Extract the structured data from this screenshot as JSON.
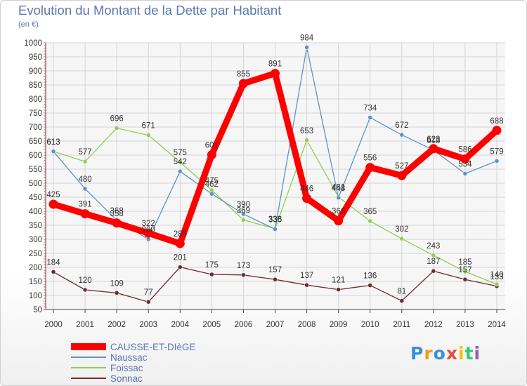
{
  "title": "Evolution du Montant de la Dette par Habitant",
  "subtitle": "(en €)",
  "brand": {
    "letters": [
      "P",
      "r",
      "o",
      "x",
      "i",
      "t",
      "i"
    ],
    "colors": [
      "#3b8ed8",
      "#f39c12",
      "#3b8ed8",
      "#e74c3c",
      "#f1c40f",
      "#2ecc71",
      "#9b59b6"
    ]
  },
  "chart_data": {
    "type": "line",
    "x": [
      "2000",
      "2001",
      "2002",
      "2003",
      "2004",
      "2005",
      "2006",
      "2007",
      "2008",
      "2009",
      "2010",
      "2011",
      "2012",
      "2013",
      "2014"
    ],
    "ylim": [
      50,
      1000
    ],
    "yticks": [
      50,
      100,
      150,
      200,
      250,
      300,
      350,
      400,
      450,
      500,
      550,
      600,
      650,
      700,
      750,
      800,
      850,
      900,
      950,
      1000
    ],
    "grid": true,
    "legend": "bottom-left",
    "series": [
      {
        "name": "CAUSSE-ET-DIèGE",
        "color": "#ff0000",
        "values": [
          425,
          391,
          358,
          322,
          285,
          601,
          855,
          891,
          446,
          366,
          556,
          527,
          623,
          586,
          688
        ],
        "labels": [
          "425",
          "391",
          "358",
          "322",
          "285",
          "601",
          "855",
          "891",
          "446",
          "366",
          "556",
          "527",
          "623",
          "586",
          "688"
        ]
      },
      {
        "name": "Naussac",
        "color": "#5b93c8",
        "values": [
          613,
          480,
          368,
          300,
          542,
          462,
          390,
          336,
          984,
          448,
          734,
          672,
          618,
          534,
          579
        ],
        "labels": [
          "613",
          "480",
          "368",
          "300",
          "542",
          "462",
          "390",
          "336",
          "984",
          "448",
          "734",
          "672",
          "618",
          "534",
          "579"
        ]
      },
      {
        "name": "Foissac",
        "color": "#8ed04f",
        "values": [
          613,
          577,
          696,
          671,
          575,
          475,
          369,
          338,
          653,
          451,
          365,
          302,
          243,
          185,
          140
        ],
        "labels": [
          "613",
          "577",
          "696",
          "671",
          "575",
          "475",
          "369",
          "338",
          "653",
          "451",
          "365",
          "302",
          "243",
          "185",
          "140"
        ]
      },
      {
        "name": "Sonnac",
        "color": "#6e2b2b",
        "values": [
          184,
          120,
          109,
          77,
          201,
          175,
          173,
          157,
          137,
          121,
          136,
          81,
          187,
          157,
          133
        ],
        "labels": [
          "184",
          "120",
          "109",
          "77",
          "201",
          "175",
          "173",
          "157",
          "137",
          "121",
          "136",
          "81",
          "187",
          "157",
          "133"
        ]
      }
    ]
  }
}
